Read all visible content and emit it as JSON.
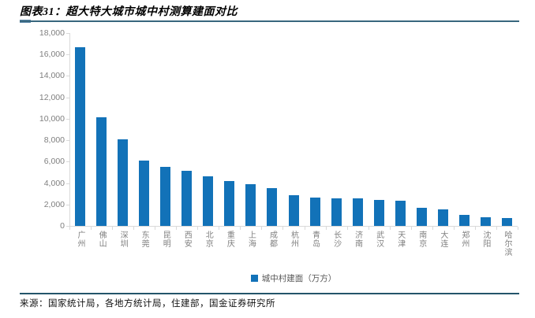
{
  "header": {
    "title": "图表31：超大特大城市城中村测算建面对比"
  },
  "chart_data": {
    "type": "bar",
    "title": "超大特大城市城中村测算建面对比",
    "categories": [
      "广州",
      "佛山",
      "深圳",
      "东莞",
      "昆明",
      "西安",
      "北京",
      "重庆",
      "上海",
      "成都",
      "杭州",
      "青岛",
      "长沙",
      "济南",
      "武汉",
      "天津",
      "南京",
      "大连",
      "郑州",
      "沈阳",
      "哈尔滨"
    ],
    "values": [
      16700,
      10150,
      8100,
      6100,
      5500,
      5150,
      4600,
      4200,
      3900,
      3550,
      2900,
      2650,
      2600,
      2600,
      2450,
      2350,
      1700,
      1570,
      1050,
      800,
      700
    ],
    "series_name": "城中村建面（万方）",
    "xlabel": "",
    "ylabel": "",
    "ylim": [
      0,
      18000
    ],
    "ytick_step": 2000,
    "ytick_labels": [
      "0",
      "2,000",
      "4,000",
      "6,000",
      "8,000",
      "10,000",
      "12,000",
      "14,000",
      "16,000",
      "18,000"
    ],
    "grid": false,
    "legend_position": "bottom-center",
    "bar_color": "#1272b8"
  },
  "colors": {
    "bar": "#1272b8",
    "axis": "#d9d9d9",
    "tick_text": "#7f7f7f",
    "legend_text": "#595959",
    "title_rule": "#38677e",
    "title_rule_accent": "#5b87a8",
    "footer_rule": "#24556a"
  },
  "footer": {
    "source": "来源：国家统计局，各地方统计局，住建部，国金证券研究所"
  }
}
